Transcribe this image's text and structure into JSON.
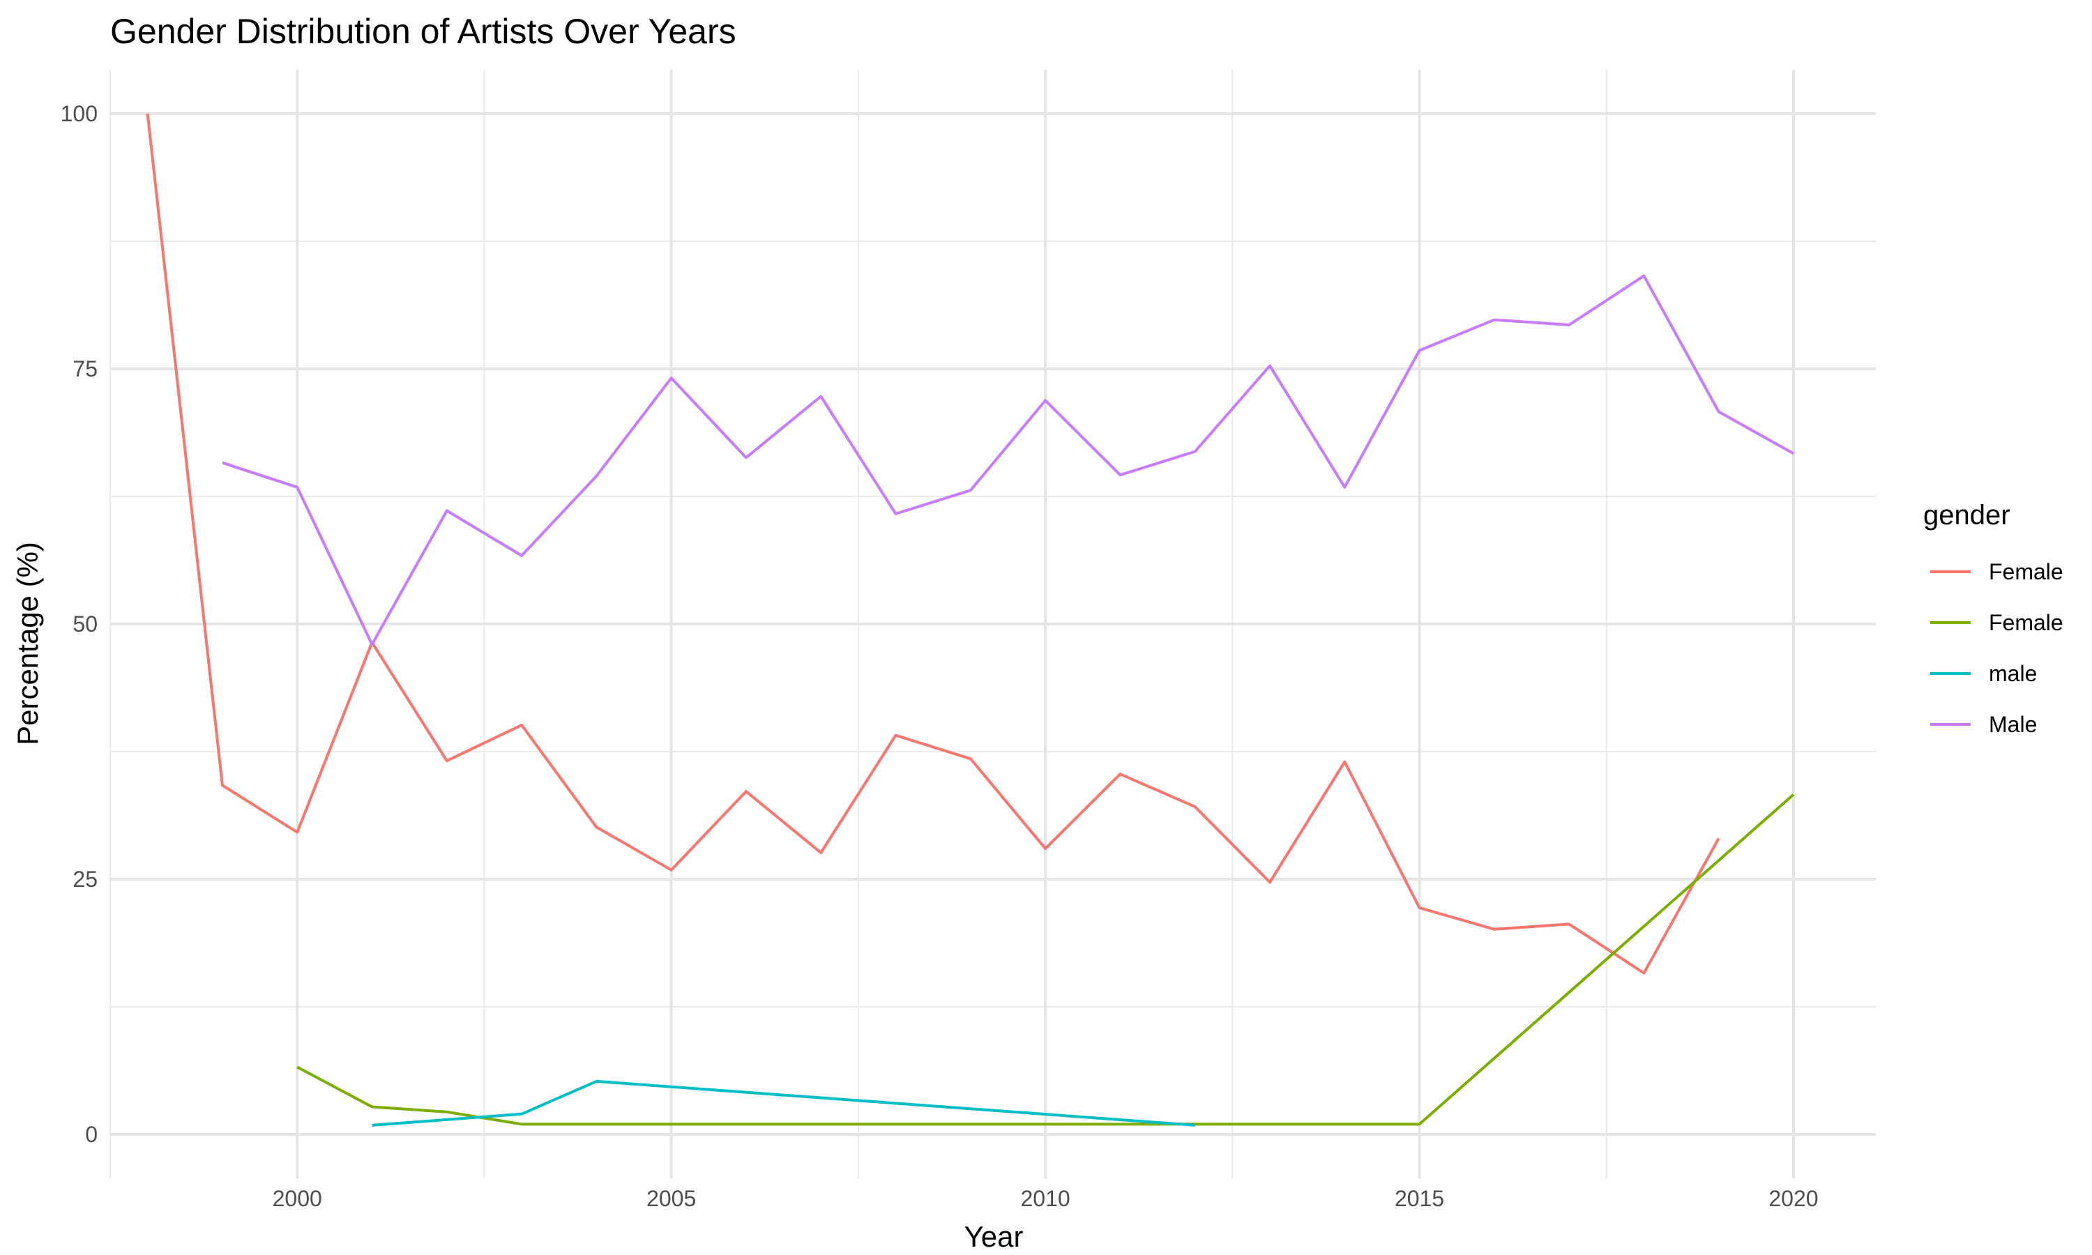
{
  "chart_data": {
    "type": "line",
    "title": "Gender Distribution of Artists Over Years",
    "xlabel": "Year",
    "ylabel": "Percentage (%)",
    "xlim": [
      1997.5,
      2021.1
    ],
    "ylim": [
      -4.3,
      104.3
    ],
    "x_ticks": [
      2000,
      2005,
      2010,
      2015,
      2020
    ],
    "y_ticks": [
      0,
      25,
      50,
      75,
      100
    ],
    "grid": true,
    "legend": {
      "title": "gender",
      "position": "right"
    },
    "series": [
      {
        "name": "Female",
        "color": "#F8766D",
        "x": [
          1998,
          1999,
          2000,
          2001,
          2002,
          2003,
          2004,
          2005,
          2006,
          2007,
          2008,
          2009,
          2010,
          2011,
          2012,
          2013,
          2014,
          2015,
          2016,
          2017,
          2018,
          2019
        ],
        "y": [
          100,
          34.2,
          29.6,
          48.2,
          36.6,
          40.1,
          30.1,
          25.9,
          33.6,
          27.6,
          39.1,
          36.8,
          28.0,
          35.3,
          32.1,
          24.7,
          36.5,
          22.2,
          20.1,
          20.6,
          15.8,
          29.0
        ]
      },
      {
        "name": "Female",
        "color": "#7CAE00",
        "x": [
          2000,
          2001,
          2002,
          2003,
          2004,
          2005,
          2006,
          2007,
          2008,
          2009,
          2010,
          2011,
          2012,
          2013,
          2014,
          2015,
          2020
        ],
        "y": [
          6.6,
          2.7,
          2.2,
          1.0,
          1.0,
          1.0,
          1.0,
          1.0,
          1.0,
          1.0,
          1.0,
          1.0,
          1.0,
          1.0,
          1.0,
          1.0,
          33.3
        ]
      },
      {
        "name": "male",
        "color": "#00BFC4",
        "x": [
          2001,
          2003,
          2004,
          2012
        ],
        "y": [
          0.9,
          2.0,
          5.2,
          0.9
        ]
      },
      {
        "name": "Male",
        "color": "#C77CFF",
        "x": [
          1999,
          2000,
          2001,
          2002,
          2003,
          2004,
          2005,
          2006,
          2007,
          2008,
          2009,
          2010,
          2011,
          2012,
          2013,
          2014,
          2015,
          2016,
          2017,
          2018,
          2019,
          2020
        ],
        "y": [
          65.8,
          63.4,
          48.0,
          61.1,
          56.7,
          64.5,
          74.1,
          66.3,
          72.3,
          60.8,
          63.1,
          71.9,
          64.6,
          66.9,
          75.3,
          63.4,
          76.8,
          79.8,
          79.3,
          84.1,
          70.8,
          66.7
        ]
      }
    ]
  }
}
